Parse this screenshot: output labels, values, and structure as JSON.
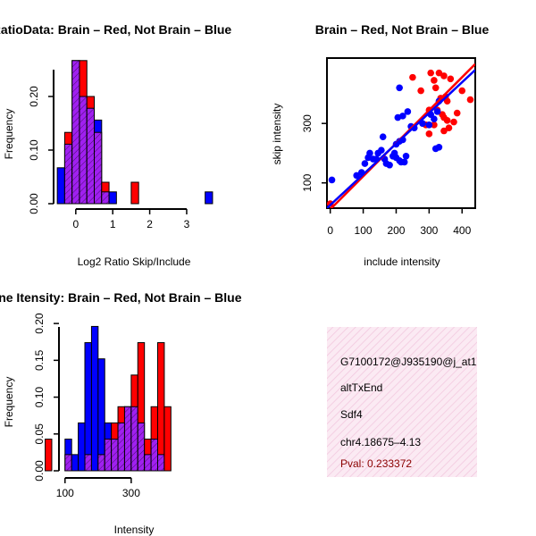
{
  "colors": {
    "red": "#ff0000",
    "blue": "#0000ff",
    "purple": "#a020f0",
    "pinkBg": "#f7dceb",
    "pval": "#8b0000"
  },
  "chart_data": [
    {
      "id": "ratio",
      "type": "bar",
      "title": "RatioData: Brain – Red, Not Brain – Blue",
      "xlabel": "Log2 Ratio Skip/Include",
      "ylabel": "Frequency",
      "xlim": [
        -0.6,
        3.75
      ],
      "ylim": [
        0,
        0.275
      ],
      "xticks": [
        0,
        1,
        2,
        3
      ],
      "yticks": [
        0.0,
        0.1,
        0.2
      ],
      "ytick_labels": [
        "0.00",
        "0.10",
        "0.20"
      ],
      "bin_start": -0.5,
      "bin_width": 0.2,
      "series": [
        {
          "name": "Brain",
          "color": "red",
          "values": [
            0,
            0.133,
            0.267,
            0.267,
            0.2,
            0.133,
            0.04,
            0,
            0,
            0,
            0.04,
            0,
            0,
            0,
            0,
            0,
            0,
            0,
            0,
            0,
            0
          ]
        },
        {
          "name": "Not Brain",
          "color": "blue",
          "values": [
            0.067,
            0.111,
            0.267,
            0.2,
            0.178,
            0.156,
            0.022,
            0.022,
            0,
            0,
            0,
            0,
            0,
            0,
            0,
            0,
            0,
            0,
            0,
            0,
            0.022
          ]
        }
      ]
    },
    {
      "id": "scatter",
      "type": "scatter",
      "title": "Brain – Red, Not Brain – Blue",
      "xlabel": "include intensity",
      "ylabel": "skip intensity",
      "xlim": [
        -10,
        440
      ],
      "ylim": [
        15,
        520
      ],
      "xticks": [
        0,
        100,
        200,
        300,
        400
      ],
      "yticks": [
        100,
        300
      ],
      "series": [
        {
          "name": "Brain",
          "color": "red",
          "points": [
            [
              0,
              30
            ],
            [
              250,
              455
            ],
            [
              275,
              410
            ],
            [
              305,
              470
            ],
            [
              315,
              445
            ],
            [
              330,
              470
            ],
            [
              345,
              460
            ],
            [
              365,
              450
            ],
            [
              320,
              420
            ],
            [
              335,
              385
            ],
            [
              350,
              390
            ],
            [
              355,
              375
            ],
            [
              300,
              345
            ],
            [
              325,
              345
            ],
            [
              340,
              330
            ],
            [
              345,
              320
            ],
            [
              355,
              310
            ],
            [
              290,
              295
            ],
            [
              315,
              295
            ],
            [
              300,
              265
            ],
            [
              345,
              275
            ],
            [
              360,
              285
            ],
            [
              375,
              305
            ],
            [
              385,
              335
            ],
            [
              400,
              410
            ],
            [
              425,
              380
            ]
          ]
        },
        {
          "name": "Not Brain",
          "color": "blue",
          "points": [
            [
              5,
              110
            ],
            [
              80,
              125
            ],
            [
              95,
              135
            ],
            [
              105,
              165
            ],
            [
              115,
              185
            ],
            [
              130,
              180
            ],
            [
              145,
              200
            ],
            [
              155,
              210
            ],
            [
              165,
              180
            ],
            [
              170,
              165
            ],
            [
              180,
              160
            ],
            [
              190,
              190
            ],
            [
              195,
              200
            ],
            [
              200,
              185
            ],
            [
              210,
              175
            ],
            [
              215,
              170
            ],
            [
              225,
              170
            ],
            [
              230,
              190
            ],
            [
              200,
              230
            ],
            [
              210,
              240
            ],
            [
              220,
              245
            ],
            [
              160,
              255
            ],
            [
              205,
              320
            ],
            [
              220,
              325
            ],
            [
              235,
              340
            ],
            [
              210,
              420
            ],
            [
              245,
              290
            ],
            [
              255,
              285
            ],
            [
              280,
              300
            ],
            [
              300,
              295
            ],
            [
              305,
              330
            ],
            [
              315,
              315
            ],
            [
              325,
              340
            ],
            [
              330,
              375
            ],
            [
              320,
              215
            ],
            [
              330,
              220
            ],
            [
              120,
              200
            ],
            [
              140,
              180
            ]
          ]
        }
      ],
      "fit_lines": [
        {
          "color": "red",
          "from": [
            -10,
            0
          ],
          "to": [
            440,
            500
          ]
        },
        {
          "color": "blue",
          "from": [
            -10,
            15
          ],
          "to": [
            440,
            480
          ]
        }
      ]
    },
    {
      "id": "intensity",
      "type": "bar",
      "title": "Gene Itensity: Brain – Red, Not Brain – Blue",
      "xlabel": "Intensity",
      "ylabel": "Frequency",
      "xlim": [
        25,
        600
      ],
      "ylim": [
        0,
        0.205
      ],
      "xticks": [
        100,
        300
      ],
      "yticks": [
        0.0,
        0.05,
        0.1,
        0.15,
        0.2
      ],
      "ytick_labels": [
        "0.00",
        "0.05",
        "0.10",
        "0.15",
        "0.20"
      ],
      "bin_start": 40,
      "bin_width": 20,
      "series": [
        {
          "name": "Brain",
          "color": "red",
          "values": [
            0.043,
            0,
            0,
            0.022,
            0,
            0,
            0.022,
            0,
            0.022,
            0.043,
            0.065,
            0.087,
            0.087,
            0.13,
            0.174,
            0.043,
            0.087,
            0.174,
            0.087,
            0,
            0,
            0,
            0,
            0,
            0,
            0,
            0,
            0
          ]
        },
        {
          "name": "Not Brain",
          "color": "blue",
          "values": [
            0,
            0,
            0,
            0.043,
            0.022,
            0.065,
            0.174,
            0.196,
            0.152,
            0.065,
            0.043,
            0.065,
            0.087,
            0.087,
            0.065,
            0.022,
            0.043,
            0.022,
            0,
            0,
            0,
            0,
            0,
            0,
            0,
            0,
            0,
            0
          ]
        }
      ]
    }
  ],
  "info": {
    "line1": "G7100172@J935190@j_at1",
    "line2": "altTxEnd",
    "line3": "Sdf4",
    "line4": "chr4.18675–4.13",
    "pval": "Pval: 0.233372"
  }
}
